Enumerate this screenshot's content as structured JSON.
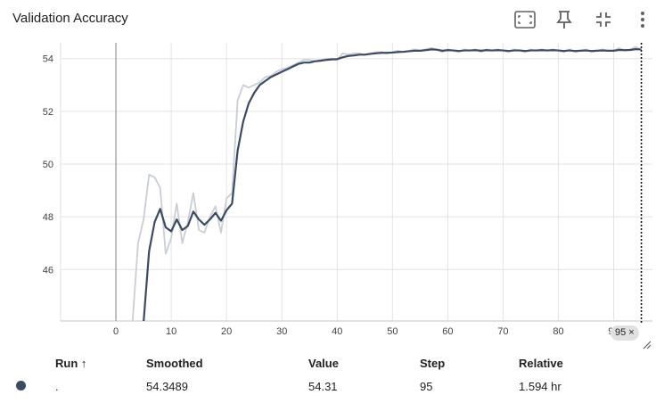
{
  "header": {
    "title": "Validation Accuracy",
    "icons": [
      "fit-to-data-icon",
      "pin-icon",
      "collapse-icon",
      "more-vert-icon"
    ]
  },
  "chart_data": {
    "type": "line",
    "title": "Validation Accuracy",
    "xlabel": "",
    "ylabel": "",
    "xlim": [
      -10,
      97
    ],
    "ylim": [
      44.05,
      54.6
    ],
    "x_ticks": [
      "0",
      "10",
      "20",
      "30",
      "40",
      "50",
      "60",
      "70",
      "80",
      "90"
    ],
    "y_ticks": [
      "46",
      "48",
      "50",
      "52",
      "54"
    ],
    "grid": true,
    "series": [
      {
        "role": "raw",
        "color": "#c9ced6",
        "points": [
          [
            3,
            44.0
          ],
          [
            4,
            47.0
          ],
          [
            5,
            47.9
          ],
          [
            6,
            49.6
          ],
          [
            7,
            49.5
          ],
          [
            8,
            49.1
          ],
          [
            9,
            46.6
          ],
          [
            10,
            47.2
          ],
          [
            11,
            48.5
          ],
          [
            12,
            47.0
          ],
          [
            13,
            47.8
          ],
          [
            14,
            48.9
          ],
          [
            15,
            47.5
          ],
          [
            16,
            47.4
          ],
          [
            17,
            48.0
          ],
          [
            18,
            48.4
          ],
          [
            19,
            47.4
          ],
          [
            20,
            48.7
          ],
          [
            21,
            48.9
          ],
          [
            22,
            52.4
          ],
          [
            23,
            53.0
          ],
          [
            24,
            52.9
          ],
          [
            25,
            53.0
          ],
          [
            26,
            53.1
          ],
          [
            27,
            53.3
          ],
          [
            28,
            53.35
          ],
          [
            29,
            53.5
          ],
          [
            30,
            53.6
          ],
          [
            31,
            53.65
          ],
          [
            32,
            53.75
          ],
          [
            33,
            53.85
          ],
          [
            34,
            53.95
          ],
          [
            35,
            53.95
          ],
          [
            36,
            53.9
          ],
          [
            37,
            53.95
          ],
          [
            38,
            54.0
          ],
          [
            39,
            54.0
          ],
          [
            40,
            53.95
          ],
          [
            41,
            54.2
          ],
          [
            42,
            54.15
          ],
          [
            43,
            54.2
          ],
          [
            44,
            54.2
          ],
          [
            45,
            54.15
          ],
          [
            46,
            54.2
          ],
          [
            47,
            54.25
          ],
          [
            48,
            54.25
          ],
          [
            49,
            54.2
          ],
          [
            50,
            54.25
          ],
          [
            51,
            54.3
          ],
          [
            52,
            54.25
          ],
          [
            53,
            54.3
          ],
          [
            54,
            54.35
          ],
          [
            55,
            54.3
          ],
          [
            56,
            54.35
          ],
          [
            57,
            54.4
          ],
          [
            58,
            54.35
          ],
          [
            59,
            54.25
          ],
          [
            60,
            54.35
          ],
          [
            61,
            54.3
          ],
          [
            62,
            54.25
          ],
          [
            63,
            54.35
          ],
          [
            64,
            54.3
          ],
          [
            65,
            54.35
          ],
          [
            66,
            54.25
          ],
          [
            67,
            54.35
          ],
          [
            68,
            54.3
          ],
          [
            69,
            54.35
          ],
          [
            70,
            54.3
          ],
          [
            71,
            54.25
          ],
          [
            72,
            54.35
          ],
          [
            73,
            54.3
          ],
          [
            74,
            54.25
          ],
          [
            75,
            54.35
          ],
          [
            76,
            54.3
          ],
          [
            77,
            54.35
          ],
          [
            78,
            54.3
          ],
          [
            79,
            54.35
          ],
          [
            80,
            54.3
          ],
          [
            81,
            54.25
          ],
          [
            82,
            54.35
          ],
          [
            83,
            54.25
          ],
          [
            84,
            54.3
          ],
          [
            85,
            54.35
          ],
          [
            86,
            54.25
          ],
          [
            87,
            54.3
          ],
          [
            88,
            54.35
          ],
          [
            89,
            54.3
          ],
          [
            90,
            54.3
          ],
          [
            91,
            54.4
          ],
          [
            92,
            54.3
          ],
          [
            93,
            54.35
          ],
          [
            94,
            54.45
          ],
          [
            95,
            54.31
          ]
        ]
      },
      {
        "role": "smoothed",
        "color": "#3c4a63",
        "points": [
          [
            5,
            44.0
          ],
          [
            6,
            46.7
          ],
          [
            7,
            47.8
          ],
          [
            8,
            48.3
          ],
          [
            9,
            47.6
          ],
          [
            10,
            47.45
          ],
          [
            11,
            47.9
          ],
          [
            12,
            47.5
          ],
          [
            13,
            47.65
          ],
          [
            14,
            48.2
          ],
          [
            15,
            47.9
          ],
          [
            16,
            47.7
          ],
          [
            17,
            47.9
          ],
          [
            18,
            48.15
          ],
          [
            19,
            47.85
          ],
          [
            20,
            48.25
          ],
          [
            21,
            48.5
          ],
          [
            22,
            50.5
          ],
          [
            23,
            51.6
          ],
          [
            24,
            52.3
          ],
          [
            25,
            52.7
          ],
          [
            26,
            53.0
          ],
          [
            27,
            53.15
          ],
          [
            28,
            53.3
          ],
          [
            29,
            53.4
          ],
          [
            30,
            53.5
          ],
          [
            31,
            53.6
          ],
          [
            32,
            53.7
          ],
          [
            33,
            53.8
          ],
          [
            34,
            53.85
          ],
          [
            35,
            53.85
          ],
          [
            36,
            53.9
          ],
          [
            37,
            53.92
          ],
          [
            38,
            53.95
          ],
          [
            39,
            53.97
          ],
          [
            40,
            53.98
          ],
          [
            41,
            54.05
          ],
          [
            42,
            54.1
          ],
          [
            43,
            54.12
          ],
          [
            44,
            54.15
          ],
          [
            45,
            54.15
          ],
          [
            46,
            54.18
          ],
          [
            47,
            54.2
          ],
          [
            48,
            54.22
          ],
          [
            49,
            54.22
          ],
          [
            50,
            54.23
          ],
          [
            51,
            54.25
          ],
          [
            52,
            54.26
          ],
          [
            53,
            54.28
          ],
          [
            54,
            54.3
          ],
          [
            55,
            54.3
          ],
          [
            56,
            54.32
          ],
          [
            57,
            54.35
          ],
          [
            58,
            54.34
          ],
          [
            59,
            54.3
          ],
          [
            60,
            54.32
          ],
          [
            61,
            54.31
          ],
          [
            62,
            54.29
          ],
          [
            63,
            54.31
          ],
          [
            64,
            54.31
          ],
          [
            65,
            54.32
          ],
          [
            66,
            54.3
          ],
          [
            67,
            54.32
          ],
          [
            68,
            54.31
          ],
          [
            69,
            54.32
          ],
          [
            70,
            54.31
          ],
          [
            71,
            54.29
          ],
          [
            72,
            54.31
          ],
          [
            73,
            54.31
          ],
          [
            74,
            54.29
          ],
          [
            75,
            54.31
          ],
          [
            76,
            54.31
          ],
          [
            77,
            54.32
          ],
          [
            78,
            54.31
          ],
          [
            79,
            54.32
          ],
          [
            80,
            54.31
          ],
          [
            81,
            54.29
          ],
          [
            82,
            54.31
          ],
          [
            83,
            54.29
          ],
          [
            84,
            54.3
          ],
          [
            85,
            54.31
          ],
          [
            86,
            54.29
          ],
          [
            87,
            54.3
          ],
          [
            88,
            54.31
          ],
          [
            89,
            54.3
          ],
          [
            90,
            54.3
          ],
          [
            91,
            54.33
          ],
          [
            92,
            54.32
          ],
          [
            93,
            54.33
          ],
          [
            94,
            54.36
          ],
          [
            95,
            54.3489
          ]
        ]
      }
    ],
    "hover_step": 95,
    "hover_badge": "95 ×"
  },
  "table": {
    "headers": [
      "Run ↑",
      "Smoothed",
      "Value",
      "Step",
      "Relative"
    ],
    "rows": [
      {
        "color": "#3c4a63",
        "run": ".",
        "smoothed": "54.3489",
        "value": "54.31",
        "step": "95",
        "relative": "1.594 hr"
      }
    ]
  }
}
